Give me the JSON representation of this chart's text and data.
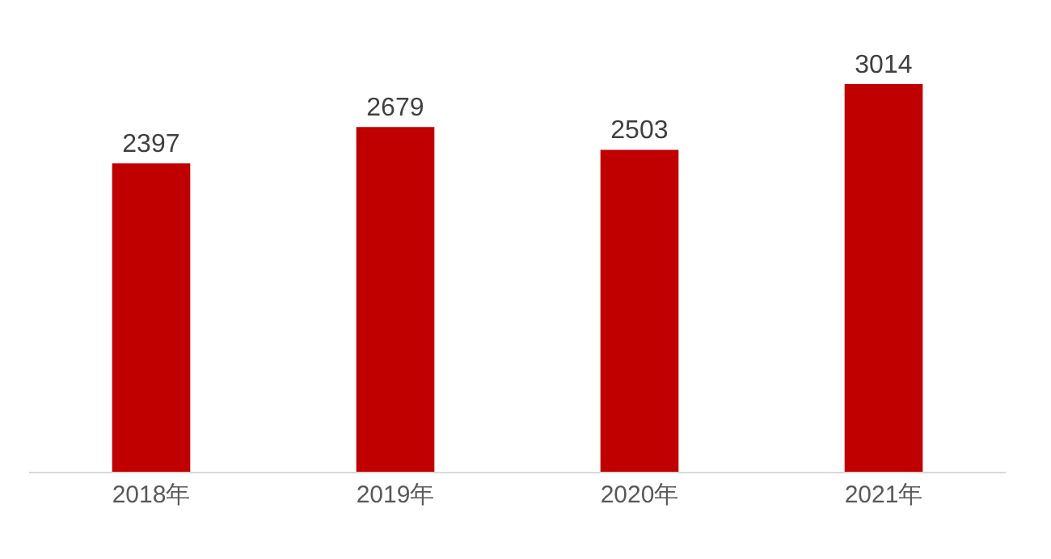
{
  "chart_data": {
    "type": "bar",
    "categories": [
      "2018年",
      "2019年",
      "2020年",
      "2021年"
    ],
    "values": [
      2397,
      2679,
      2503,
      3014
    ],
    "color": "#c00000",
    "data_labels": true
  }
}
